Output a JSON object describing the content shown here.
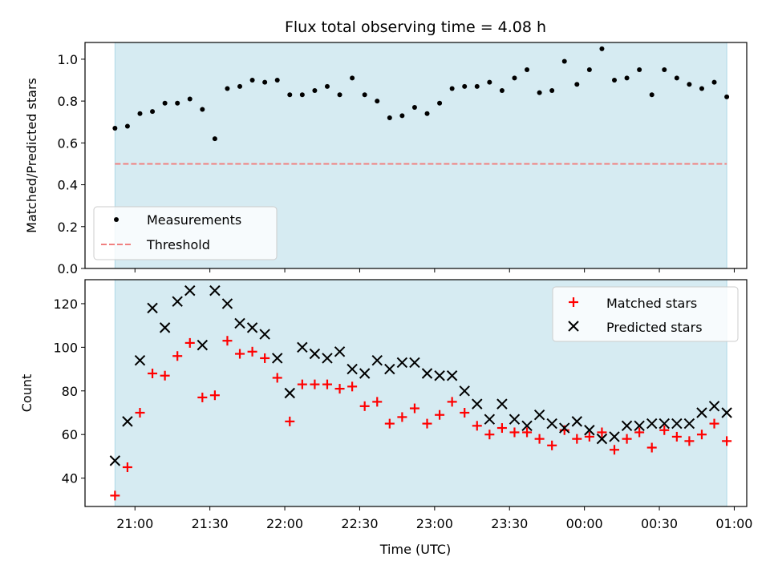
{
  "chart_data": [
    {
      "type": "scatter",
      "title": "Flux total observing time = 4.08 h",
      "xlabel": "",
      "ylabel": "Matched/Predicted stars",
      "ylim": [
        0,
        1.08
      ],
      "yticks": [
        "0.0",
        "0.2",
        "0.4",
        "0.6",
        "0.8",
        "1.0"
      ],
      "shaded_span": [
        "20:52",
        "24:57"
      ],
      "threshold": 0.5,
      "legend_position": "lower-left",
      "legend": [
        {
          "label": "Measurements",
          "marker": "dot",
          "color": "#000000"
        },
        {
          "label": "Threshold",
          "marker": "dashed-line",
          "color": "#f08080"
        }
      ],
      "x": [
        "20:52",
        "20:57",
        "21:02",
        "21:07",
        "21:12",
        "21:17",
        "21:22",
        "21:27",
        "21:32",
        "21:37",
        "21:42",
        "21:47",
        "21:52",
        "21:57",
        "22:02",
        "22:07",
        "22:12",
        "22:17",
        "22:22",
        "22:27",
        "22:32",
        "22:37",
        "22:42",
        "22:47",
        "22:52",
        "22:57",
        "23:02",
        "23:07",
        "23:12",
        "23:17",
        "23:22",
        "23:27",
        "23:32",
        "23:37",
        "23:42",
        "23:47",
        "23:52",
        "23:57",
        "24:02",
        "24:07",
        "24:12",
        "24:17",
        "24:22",
        "24:27",
        "24:32",
        "24:37",
        "24:42",
        "24:47",
        "24:52",
        "24:57"
      ],
      "values": [
        0.67,
        0.68,
        0.74,
        0.75,
        0.79,
        0.79,
        0.81,
        0.76,
        0.62,
        0.86,
        0.87,
        0.9,
        0.89,
        0.9,
        0.83,
        0.83,
        0.85,
        0.87,
        0.83,
        0.91,
        0.83,
        0.8,
        0.72,
        0.73,
        0.77,
        0.74,
        0.79,
        0.86,
        0.87,
        0.87,
        0.89,
        0.85,
        0.91,
        0.95,
        0.84,
        0.85,
        0.99,
        0.88,
        0.95,
        1.05,
        0.9,
        0.91,
        0.95,
        0.83,
        0.95,
        0.91,
        0.88,
        0.86,
        0.89,
        0.82
      ]
    },
    {
      "type": "scatter",
      "title": "",
      "xlabel": "Time (UTC)",
      "ylabel": "Count",
      "ylim": [
        27,
        131
      ],
      "yticks": [
        "40",
        "60",
        "80",
        "100",
        "120"
      ],
      "xticks": [
        "21:00",
        "21:30",
        "22:00",
        "22:30",
        "23:00",
        "23:30",
        "00:00",
        "00:30",
        "01:00"
      ],
      "legend_position": "upper-right",
      "series": [
        {
          "name": "Matched stars",
          "marker": "plus",
          "color": "#ff0000",
          "values": [
            32,
            45,
            70,
            88,
            87,
            96,
            102,
            77,
            78,
            103,
            97,
            98,
            95,
            86,
            66,
            83,
            83,
            83,
            81,
            82,
            73,
            75,
            65,
            68,
            72,
            65,
            69,
            75,
            70,
            64,
            60,
            63,
            61,
            61,
            58,
            55,
            62,
            58,
            59,
            61,
            53,
            58,
            61,
            54,
            62,
            59,
            57,
            60,
            65,
            57
          ]
        },
        {
          "name": "Predicted stars",
          "marker": "x",
          "color": "#000000",
          "values": [
            48,
            66,
            94,
            118,
            109,
            121,
            126,
            101,
            126,
            120,
            111,
            109,
            106,
            95,
            79,
            100,
            97,
            95,
            98,
            90,
            88,
            94,
            90,
            93,
            93,
            88,
            87,
            87,
            80,
            74,
            67,
            74,
            67,
            64,
            69,
            65,
            63,
            66,
            62,
            58,
            59,
            64,
            64,
            65,
            65,
            65,
            65,
            70,
            73,
            70
          ]
        }
      ]
    }
  ]
}
